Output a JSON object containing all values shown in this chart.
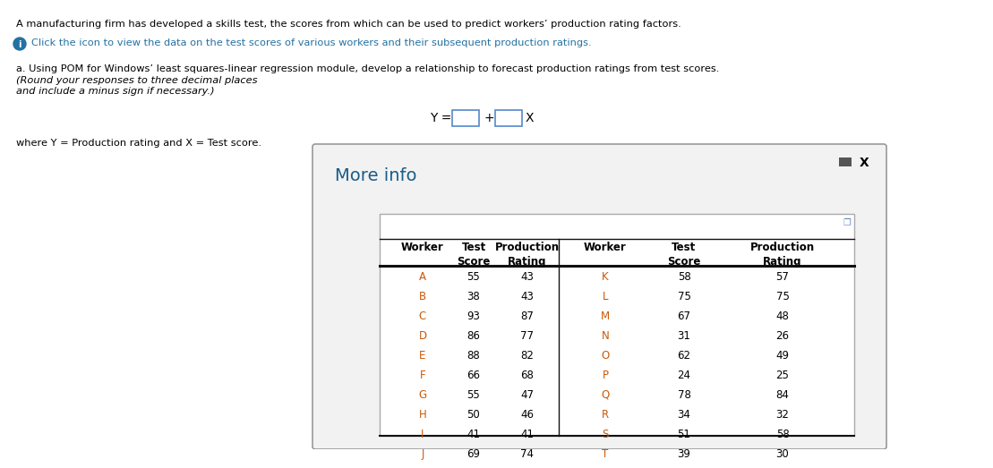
{
  "title_line1": "A manufacturing firm has developed a skills test, the scores from which can be used to predict workers’ production rating factors.",
  "title_line2": "Click the icon to view the data on the test scores of various workers and their subsequent production ratings.",
  "title_line3_normal": "a. Using POM for Windows’ least squares-linear regression module, develop a relationship to forecast production ratings from test scores. ",
  "title_line3_italic": "(Round your responses to three decimal places",
  "title_line4_italic": "and include a minus sign if necessary.)",
  "where_text": "where Y = Production rating and X = Test score.",
  "more_info_title": "More info",
  "workers_left": [
    "A",
    "B",
    "C",
    "D",
    "E",
    "F",
    "G",
    "H",
    "I",
    "J"
  ],
  "scores_left": [
    55,
    38,
    93,
    86,
    88,
    66,
    55,
    50,
    41,
    69
  ],
  "ratings_left": [
    43,
    43,
    87,
    77,
    82,
    68,
    47,
    46,
    41,
    74
  ],
  "workers_right": [
    "K",
    "L",
    "M",
    "N",
    "O",
    "P",
    "Q",
    "R",
    "S",
    "T"
  ],
  "scores_right": [
    58,
    75,
    67,
    31,
    62,
    24,
    78,
    34,
    51,
    39
  ],
  "ratings_right": [
    57,
    75,
    48,
    26,
    49,
    25,
    84,
    32,
    58,
    30
  ],
  "bg_color": "#ffffff",
  "text_black": "#000000",
  "text_blue_dark": "#1a5c8a",
  "text_orange": "#c8590a",
  "text_info_blue": "#2471a3",
  "panel_bg": "#f2f2f2",
  "panel_border": "#999999",
  "table_bg": "#ffffff",
  "table_border_light": "#aaaaaa",
  "header_line_color": "#111111",
  "formula_box_color": "#5588cc"
}
